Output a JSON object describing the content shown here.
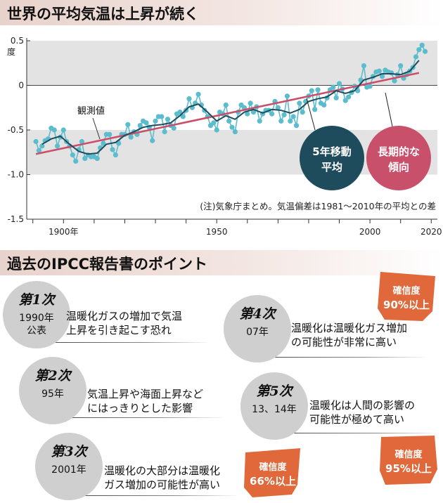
{
  "header": {
    "title": "世界の平均気温は上昇が続く"
  },
  "section2": {
    "title": "過去のIPCC報告書のポイント"
  },
  "chart_data": {
    "type": "line",
    "y_unit": "度",
    "ylim": [
      -1.5,
      0.5
    ],
    "yticks": [
      {
        "v": 0.5,
        "label": "0.5"
      },
      {
        "v": 0,
        "label": "0"
      },
      {
        "v": -0.5,
        "label": "-0.5"
      },
      {
        "v": -1.0,
        "label": "-1.0"
      },
      {
        "v": -1.5,
        "label": "-1.5"
      }
    ],
    "xlim": [
      1888,
      2022
    ],
    "xticks": [
      {
        "v": 1900,
        "label": "1900年"
      },
      {
        "v": 1950,
        "label": "1950"
      },
      {
        "v": 2000,
        "label": "2000"
      },
      {
        "v": 2020,
        "label": "2020"
      }
    ],
    "shaded_bands": [
      [
        0,
        0.5
      ],
      [
        -1.0,
        -0.5
      ]
    ],
    "note": "(注)気象庁まとめ。気温偏差は1981～2010年の平均との差",
    "labels": {
      "observed": "観測値",
      "moving_avg": "5年移動\n平均",
      "trend": "長期的な\n傾向"
    },
    "colors": {
      "observed": "#5bbccd",
      "moving_avg": "#1f4c5c",
      "trend": "#c9506a",
      "band": "#e3e3e3"
    },
    "series": [
      {
        "name": "観測値",
        "x": [
          1891,
          1892,
          1893,
          1894,
          1895,
          1896,
          1897,
          1898,
          1899,
          1900,
          1901,
          1902,
          1903,
          1904,
          1905,
          1906,
          1907,
          1908,
          1909,
          1910,
          1911,
          1912,
          1913,
          1914,
          1915,
          1916,
          1917,
          1918,
          1919,
          1920,
          1921,
          1922,
          1923,
          1924,
          1925,
          1926,
          1927,
          1928,
          1929,
          1930,
          1931,
          1932,
          1933,
          1934,
          1935,
          1936,
          1937,
          1938,
          1939,
          1940,
          1941,
          1942,
          1943,
          1944,
          1945,
          1946,
          1947,
          1948,
          1949,
          1950,
          1951,
          1952,
          1953,
          1954,
          1955,
          1956,
          1957,
          1958,
          1959,
          1960,
          1961,
          1962,
          1963,
          1964,
          1965,
          1966,
          1967,
          1968,
          1969,
          1970,
          1971,
          1972,
          1973,
          1974,
          1975,
          1976,
          1977,
          1978,
          1979,
          1980,
          1981,
          1982,
          1983,
          1984,
          1985,
          1986,
          1987,
          1988,
          1989,
          1990,
          1991,
          1992,
          1993,
          1994,
          1995,
          1996,
          1997,
          1998,
          1999,
          2000,
          2001,
          2002,
          2003,
          2004,
          2005,
          2006,
          2007,
          2008,
          2009,
          2010,
          2011,
          2012,
          2013,
          2014,
          2015,
          2016,
          2017,
          2018
        ],
        "y": [
          -0.63,
          -0.73,
          -0.68,
          -0.62,
          -0.6,
          -0.48,
          -0.5,
          -0.68,
          -0.58,
          -0.5,
          -0.63,
          -0.68,
          -0.78,
          -0.85,
          -0.72,
          -0.63,
          -0.82,
          -0.78,
          -0.8,
          -0.8,
          -0.82,
          -0.7,
          -0.65,
          -0.55,
          -0.55,
          -0.72,
          -0.78,
          -0.65,
          -0.55,
          -0.55,
          -0.44,
          -0.58,
          -0.52,
          -0.55,
          -0.45,
          -0.4,
          -0.42,
          -0.47,
          -0.62,
          -0.4,
          -0.35,
          -0.35,
          -0.52,
          -0.38,
          -0.45,
          -0.48,
          -0.32,
          -0.3,
          -0.35,
          -0.28,
          -0.15,
          -0.25,
          -0.2,
          -0.1,
          -0.22,
          -0.28,
          -0.35,
          -0.45,
          -0.42,
          -0.5,
          -0.3,
          -0.32,
          -0.22,
          -0.4,
          -0.47,
          -0.52,
          -0.3,
          -0.22,
          -0.25,
          -0.32,
          -0.2,
          -0.3,
          -0.24,
          -0.4,
          -0.32,
          -0.28,
          -0.28,
          -0.32,
          -0.18,
          -0.25,
          -0.4,
          -0.33,
          -0.12,
          -0.4,
          -0.35,
          -0.45,
          -0.2,
          -0.3,
          -0.18,
          -0.12,
          -0.06,
          -0.27,
          -0.05,
          -0.2,
          -0.22,
          -0.14,
          -0.05,
          -0.02,
          -0.14,
          0.02,
          -0.04,
          -0.17,
          -0.13,
          -0.08,
          -0.01,
          -0.06,
          0.06,
          0.22,
          -0.02,
          -0.01,
          0.1,
          0.15,
          0.16,
          0.1,
          0.17,
          0.15,
          0.14,
          0.05,
          0.12,
          0.22,
          0.08,
          0.12,
          0.16,
          0.2,
          0.32,
          0.4,
          0.45,
          0.38
        ]
      },
      {
        "name": "5年移動平均",
        "x": [
          1893,
          1896,
          1899,
          1902,
          1905,
          1908,
          1911,
          1914,
          1917,
          1920,
          1923,
          1926,
          1929,
          1932,
          1935,
          1938,
          1941,
          1944,
          1947,
          1950,
          1953,
          1956,
          1959,
          1962,
          1965,
          1968,
          1971,
          1974,
          1977,
          1980,
          1983,
          1986,
          1989,
          1992,
          1995,
          1998,
          2001,
          2004,
          2007,
          2010,
          2013,
          2016
        ],
        "y": [
          -0.66,
          -0.6,
          -0.57,
          -0.66,
          -0.74,
          -0.77,
          -0.76,
          -0.66,
          -0.64,
          -0.56,
          -0.52,
          -0.47,
          -0.45,
          -0.44,
          -0.42,
          -0.34,
          -0.24,
          -0.21,
          -0.3,
          -0.4,
          -0.34,
          -0.38,
          -0.3,
          -0.27,
          -0.31,
          -0.27,
          -0.28,
          -0.31,
          -0.27,
          -0.18,
          -0.15,
          -0.13,
          -0.06,
          -0.09,
          -0.06,
          0.06,
          0.09,
          0.13,
          0.13,
          0.12,
          0.16,
          0.28
        ]
      },
      {
        "name": "長期的な傾向",
        "x": [
          1891,
          2016
        ],
        "y": [
          -0.77,
          0.14
        ]
      }
    ]
  },
  "points": [
    {
      "num": "第1次",
      "year": "1990年\n公表",
      "text": "温暖化ガスの増加で気温\n上昇を引き起こす恐れ"
    },
    {
      "num": "第2次",
      "year": "95年",
      "text": "気温上昇や海面上昇など\nにはっきりとした影響"
    },
    {
      "num": "第3次",
      "year": "2001年",
      "text": "温暖化の大部分は温暖化\nガス増加の可能性が高い"
    },
    {
      "num": "第4次",
      "year": "07年",
      "text": "温暖化は温暖化ガス増加\nの可能性が非常に高い"
    },
    {
      "num": "第5次",
      "year": "13、14年",
      "text": "温暖化は人間の影響の\n可能性が極めて高い"
    }
  ],
  "badges": [
    {
      "line1": "確信度",
      "line2": "66%以上"
    },
    {
      "line1": "確信度",
      "line2": "90%以上"
    },
    {
      "line1": "確信度",
      "line2": "95%以上"
    }
  ],
  "badge_color": "#e0683a"
}
